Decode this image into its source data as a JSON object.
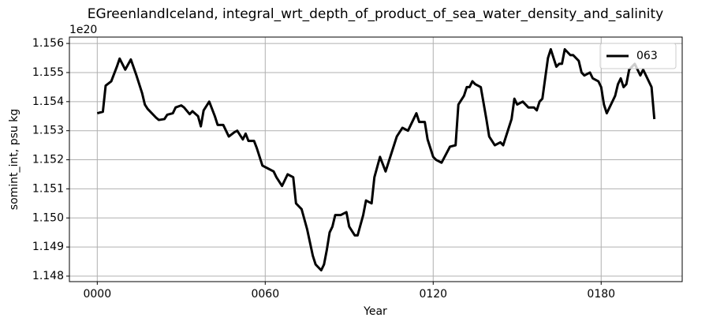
{
  "chart_data": {
    "type": "line",
    "title": "EGreenlandIceland, integral_wrt_depth_of_product_of_sea_water_density_and_salinity",
    "xlabel": "Year",
    "ylabel": "somint_int, psu kg",
    "y_offset_label": "1e20",
    "xlim": [
      -9.95,
      208.95
    ],
    "ylim": [
      1.14781,
      1.15622
    ],
    "xticks": [
      {
        "value": 0,
        "label": "0000"
      },
      {
        "value": 60,
        "label": "0060"
      },
      {
        "value": 120,
        "label": "0120"
      },
      {
        "value": 180,
        "label": "0180"
      }
    ],
    "yticks": [
      1.148,
      1.149,
      {
        "value": 1.15,
        "label": "1.150"
      },
      1.151,
      1.152,
      1.153,
      1.154,
      1.155,
      1.156
    ],
    "grid": true,
    "legend": "upper right",
    "x": [
      0,
      2,
      3,
      5,
      7,
      8,
      10,
      12,
      14,
      16,
      17,
      18,
      21,
      22,
      24,
      25,
      27,
      28,
      30,
      31,
      33,
      34,
      36,
      37,
      38,
      40,
      42,
      43,
      45,
      47,
      49,
      50,
      52,
      53,
      54,
      56,
      57,
      59,
      61,
      63,
      64,
      66,
      68,
      70,
      71,
      73,
      75,
      77,
      78,
      80,
      81,
      82,
      83,
      84,
      85,
      87,
      89,
      90,
      92,
      93,
      95,
      96,
      98,
      99,
      101,
      103,
      104,
      106,
      107,
      109,
      111,
      114,
      115,
      117,
      118,
      120,
      121,
      123,
      126,
      128,
      129,
      131,
      132,
      133,
      134,
      135,
      137,
      139,
      140,
      142,
      144,
      145,
      147,
      148,
      149,
      150,
      152,
      154,
      156,
      157,
      158,
      159,
      161,
      162,
      164,
      165,
      166,
      167,
      169,
      170,
      172,
      173,
      174,
      176,
      177,
      179,
      180,
      181,
      182,
      183,
      185,
      186,
      187,
      188,
      189,
      190,
      191,
      192,
      194,
      195,
      196,
      198,
      199
    ],
    "series": [
      {
        "name": "063",
        "color": "#000000",
        "values": [
          1.1536,
          1.15365,
          1.15455,
          1.1547,
          1.1552,
          1.15548,
          1.1551,
          1.15545,
          1.1549,
          1.1543,
          1.1539,
          1.15375,
          1.15345,
          1.15337,
          1.1534,
          1.15355,
          1.1536,
          1.1538,
          1.15387,
          1.1538,
          1.15357,
          1.15367,
          1.1535,
          1.15315,
          1.1537,
          1.154,
          1.1535,
          1.1532,
          1.1532,
          1.1528,
          1.15295,
          1.153,
          1.1527,
          1.1529,
          1.15265,
          1.15265,
          1.1524,
          1.1518,
          1.1517,
          1.1516,
          1.1514,
          1.1511,
          1.1515,
          1.1514,
          1.1505,
          1.1503,
          1.1496,
          1.1487,
          1.1484,
          1.1482,
          1.1484,
          1.1489,
          1.1495,
          1.1497,
          1.1501,
          1.1501,
          1.1502,
          1.1497,
          1.1494,
          1.1494,
          1.1501,
          1.1506,
          1.1505,
          1.1514,
          1.1521,
          1.1516,
          1.1519,
          1.1525,
          1.1528,
          1.1531,
          1.153,
          1.1536,
          1.1533,
          1.1533,
          1.1527,
          1.1521,
          1.152,
          1.1519,
          1.15245,
          1.1525,
          1.1539,
          1.1542,
          1.1545,
          1.1545,
          1.1547,
          1.1546,
          1.1545,
          1.1534,
          1.1528,
          1.1525,
          1.1526,
          1.1525,
          1.1531,
          1.1534,
          1.1541,
          1.1539,
          1.154,
          1.1538,
          1.1538,
          1.1537,
          1.154,
          1.1541,
          1.1555,
          1.1558,
          1.1552,
          1.1553,
          1.1553,
          1.1558,
          1.1556,
          1.1556,
          1.1554,
          1.155,
          1.1549,
          1.155,
          1.1548,
          1.1547,
          1.1545,
          1.1539,
          1.1536,
          1.1538,
          1.1542,
          1.1546,
          1.1548,
          1.1545,
          1.1546,
          1.1551,
          1.1552,
          1.1553,
          1.1549,
          1.1551,
          1.1549,
          1.1545,
          1.1534
        ]
      }
    ]
  }
}
